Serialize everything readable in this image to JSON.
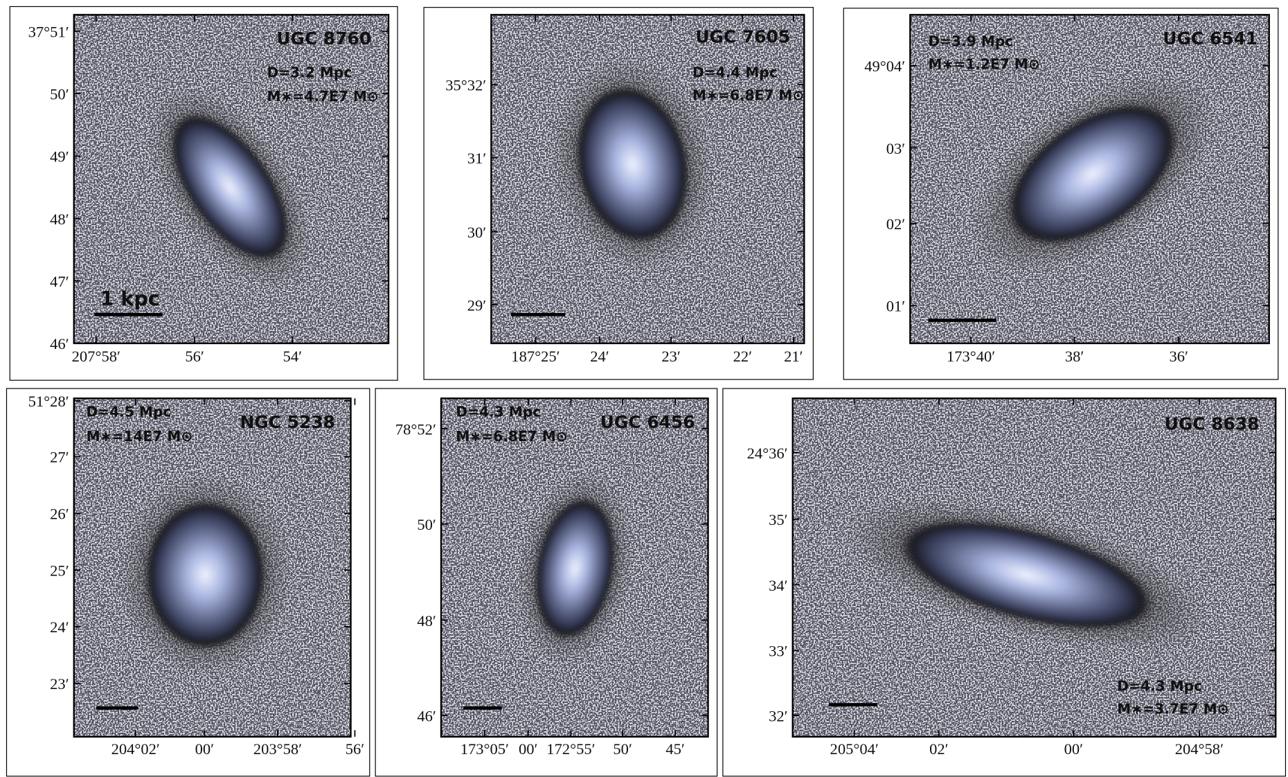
{
  "panels": [
    {
      "name": "UGC 8760",
      "distance": "D=3.2 Mpc",
      "mass": "M∗=4.7E7 M⊙",
      "scale_label": "1 kpc",
      "dec_ticks": [
        "37°51′",
        "50′",
        "49′",
        "48′",
        "47′",
        "46′"
      ],
      "ra_ticks": [
        "207°58′",
        "56′",
        "54′"
      ]
    },
    {
      "name": "UGC 7605",
      "distance": "D=4.4 Mpc",
      "mass": "M∗=6.8E7 M⊙",
      "dec_ticks": [
        "35°32′",
        "31′",
        "30′",
        "29′"
      ],
      "ra_ticks": [
        "187°25′",
        "24′",
        "23′",
        "22′",
        "21′"
      ]
    },
    {
      "name": "UGC 6541",
      "distance": "D=3.9 Mpc",
      "mass": "M∗=1.2E7 M⊙",
      "dec_ticks": [
        "49°04′",
        "03′",
        "02′",
        "01′"
      ],
      "ra_ticks": [
        "173°40′",
        "38′",
        "36′"
      ]
    },
    {
      "name": "NGC 5238",
      "distance": "D=4.5 Mpc",
      "mass": "M∗=14E7 M⊙",
      "dec_ticks": [
        "51°28′",
        "27′",
        "26′",
        "25′",
        "24′",
        "23′"
      ],
      "ra_ticks": [
        "204°02′",
        "00′",
        "203°58′",
        "56′"
      ]
    },
    {
      "name": "UGC 6456",
      "distance": "D=4.3 Mpc",
      "mass": "M∗=6.8E7 M⊙",
      "dec_ticks": [
        "78°52′",
        "50′",
        "48′",
        "46′"
      ],
      "ra_ticks": [
        "173°05′",
        "00′",
        "172°55′",
        "50′",
        "45′"
      ]
    },
    {
      "name": "UGC 8638",
      "distance": "D=4.3 Mpc",
      "mass": "M∗=3.7E7 M⊙",
      "dec_ticks": [
        "24°36′",
        "35′",
        "34′",
        "33′",
        "32′"
      ],
      "ra_ticks": [
        "205°04′",
        "02′",
        "00′",
        "204°58′"
      ]
    }
  ]
}
